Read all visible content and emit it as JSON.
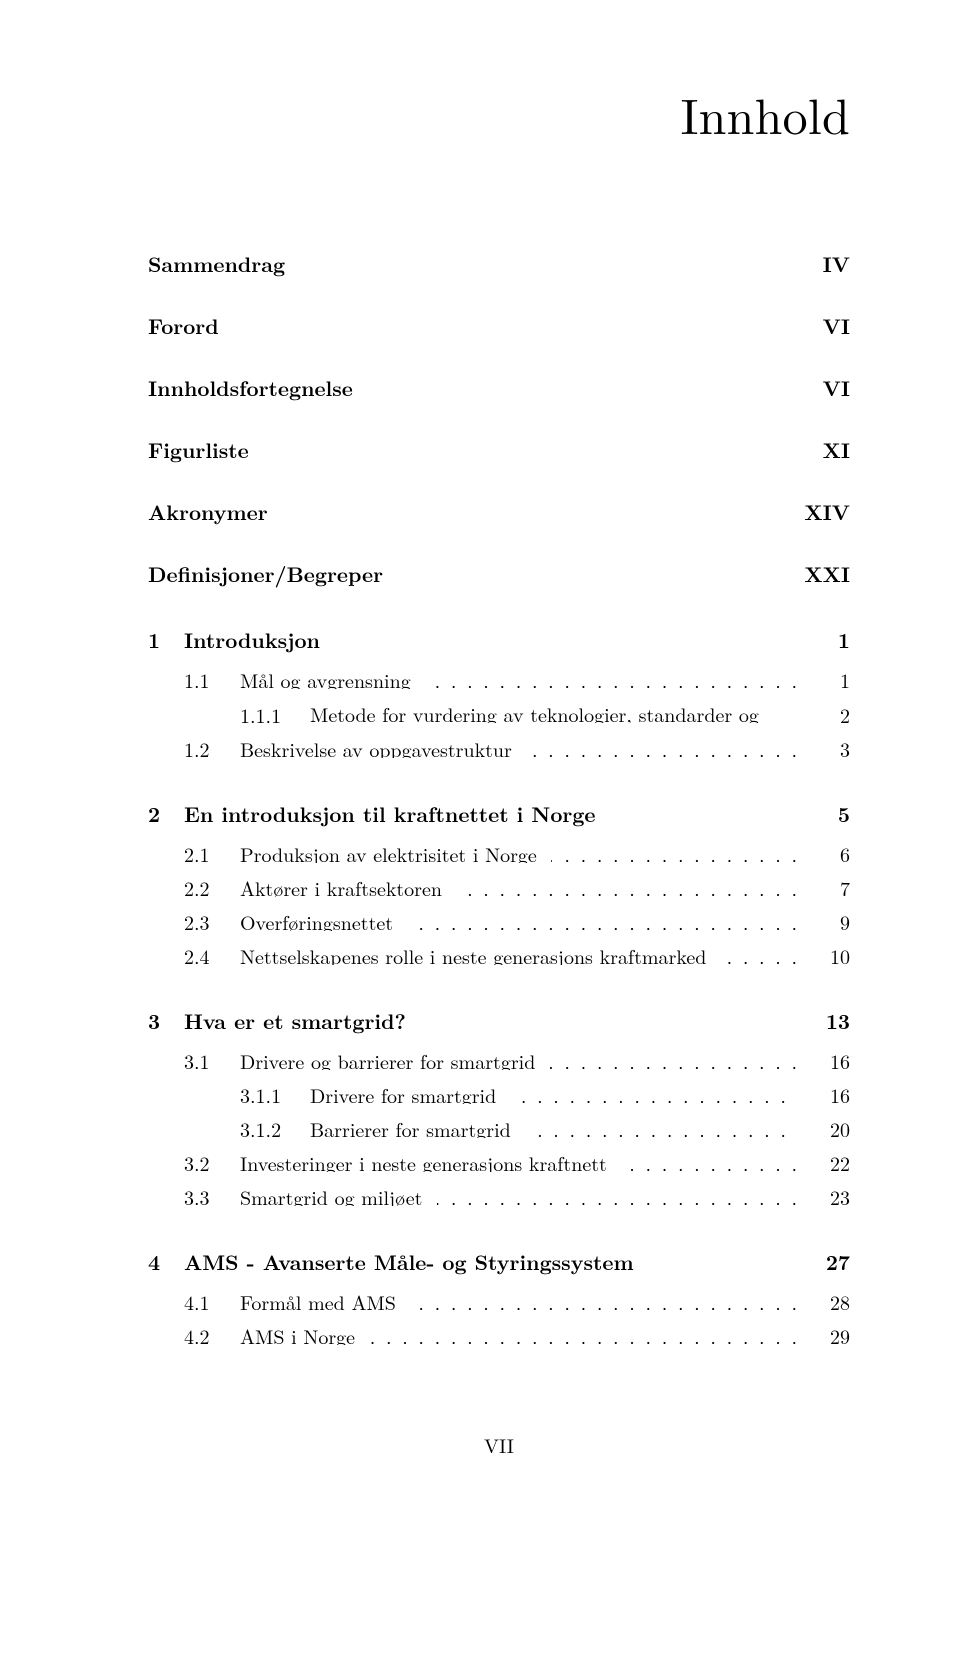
{
  "title": "Innhold",
  "front_matter": [
    {
      "label": "Sammendrag",
      "page": "IV"
    },
    {
      "label": "Forord",
      "page": "VI"
    },
    {
      "label": "Innholdsfortegnelse",
      "page": "VI"
    },
    {
      "label": "Figurliste",
      "page": "XI"
    },
    {
      "label": "Akronymer",
      "page": "XIV"
    },
    {
      "label": "Definisjoner/Begreper",
      "page": "XXI"
    }
  ],
  "chapters": [
    {
      "num": "1",
      "title": "Introduksjon",
      "page": "1",
      "sections": [
        {
          "num": "1.1",
          "title": "Mål og avgrensning",
          "page": "1",
          "subsections": [
            {
              "num": "1.1.1",
              "title": "Metode for vurdering av teknologier, standarder og protokoller for smartgrid",
              "page": "2",
              "multiline": true
            }
          ]
        },
        {
          "num": "1.2",
          "title": "Beskrivelse av oppgavestruktur",
          "page": "3",
          "subsections": []
        }
      ]
    },
    {
      "num": "2",
      "title": "En introduksjon til kraftnettet i Norge",
      "page": "5",
      "sections": [
        {
          "num": "2.1",
          "title": "Produksjon av elektrisitet i Norge",
          "page": "6",
          "subsections": []
        },
        {
          "num": "2.2",
          "title": "Aktører i kraftsektoren",
          "page": "7",
          "subsections": []
        },
        {
          "num": "2.3",
          "title": "Overføringsnettet",
          "page": "9",
          "subsections": []
        },
        {
          "num": "2.4",
          "title": "Nettselskapenes rolle i neste generasjons kraftmarked",
          "page": "10",
          "subsections": []
        }
      ]
    },
    {
      "num": "3",
      "title": "Hva er et smartgrid?",
      "page": "13",
      "sections": [
        {
          "num": "3.1",
          "title": "Drivere og barrierer for smartgrid",
          "page": "16",
          "subsections": [
            {
              "num": "3.1.1",
              "title": "Drivere for smartgrid",
              "page": "16"
            },
            {
              "num": "3.1.2",
              "title": "Barrierer for smartgrid",
              "page": "20"
            }
          ]
        },
        {
          "num": "3.2",
          "title": "Investeringer i neste generasjons kraftnett",
          "page": "22",
          "subsections": []
        },
        {
          "num": "3.3",
          "title": "Smartgrid og miljøet",
          "page": "23",
          "subsections": []
        }
      ]
    },
    {
      "num": "4",
      "title": "AMS - Avanserte Måle- og Styringssystem",
      "page": "27",
      "sections": [
        {
          "num": "4.1",
          "title": "Formål med AMS",
          "page": "28",
          "subsections": []
        },
        {
          "num": "4.2",
          "title": "AMS i Norge",
          "page": "29",
          "subsections": []
        }
      ]
    }
  ],
  "footer_page": "VII"
}
